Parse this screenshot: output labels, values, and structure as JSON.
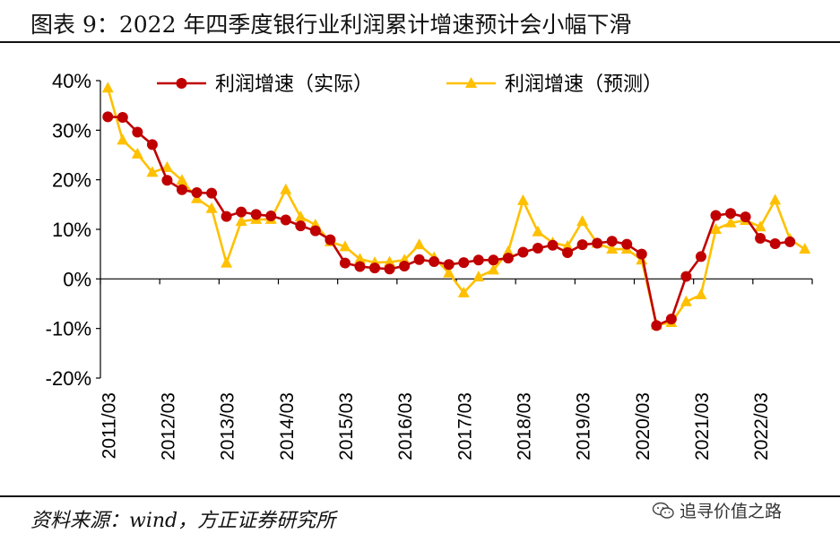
{
  "header": {
    "title": "图表 9：2022 年四季度银行业利润累计增速预计会小幅下滑"
  },
  "footer": {
    "source": "资料来源：wind，方正证券研究所",
    "watermark": "追寻价值之路",
    "watermark_icon": "wechat-icon"
  },
  "chart_data": {
    "type": "line",
    "title": "2022 年四季度银行业利润累计增速预计会小幅下滑",
    "xlabel": "",
    "ylabel": "",
    "ylim": [
      -20,
      40
    ],
    "yticks": [
      -20,
      -10,
      0,
      10,
      20,
      30,
      40
    ],
    "ytick_labels": [
      "-20%",
      "-10%",
      "0%",
      "10%",
      "20%",
      "30%",
      "40%"
    ],
    "x_tick_labels": [
      "2011/03",
      "2012/03",
      "2013/03",
      "2014/03",
      "2015/03",
      "2016/03",
      "2017/03",
      "2018/03",
      "2019/03",
      "2020/03",
      "2021/03",
      "2022/03"
    ],
    "x": [
      "2011/03",
      "2011/06",
      "2011/09",
      "2011/12",
      "2012/03",
      "2012/06",
      "2012/09",
      "2012/12",
      "2013/03",
      "2013/06",
      "2013/09",
      "2013/12",
      "2014/03",
      "2014/06",
      "2014/09",
      "2014/12",
      "2015/03",
      "2015/06",
      "2015/09",
      "2015/12",
      "2016/03",
      "2016/06",
      "2016/09",
      "2016/12",
      "2017/03",
      "2017/06",
      "2017/09",
      "2017/12",
      "2018/03",
      "2018/06",
      "2018/09",
      "2018/12",
      "2019/03",
      "2019/06",
      "2019/09",
      "2019/12",
      "2020/03",
      "2020/06",
      "2020/09",
      "2020/12",
      "2021/03",
      "2021/06",
      "2021/09",
      "2021/12",
      "2022/03",
      "2022/06",
      "2022/09",
      "2022/12"
    ],
    "grid": false,
    "legend_position": "top",
    "series": [
      {
        "name": "利润增速（实际）",
        "color": "#C00000",
        "marker": "circle",
        "values": [
          32.7,
          32.6,
          29.6,
          27.1,
          19.9,
          18.0,
          17.4,
          17.3,
          12.6,
          13.5,
          13.0,
          12.7,
          11.9,
          10.7,
          9.7,
          7.9,
          3.2,
          2.5,
          2.2,
          2.0,
          2.6,
          3.9,
          3.5,
          2.9,
          3.3,
          3.8,
          3.8,
          4.2,
          5.4,
          6.2,
          6.8,
          5.3,
          6.9,
          7.2,
          7.6,
          7.0,
          5.0,
          -9.4,
          -8.1,
          0.5,
          4.5,
          12.8,
          13.2,
          12.5,
          8.2,
          7.1,
          7.5,
          null
        ]
      },
      {
        "name": "利润增速（预测）",
        "color": "#FFC000",
        "marker": "triangle",
        "values": [
          38.5,
          28.0,
          25.2,
          21.5,
          22.5,
          19.9,
          16.2,
          14.2,
          3.2,
          11.6,
          12.0,
          12.0,
          18.0,
          12.5,
          10.9,
          7.5,
          6.5,
          4.0,
          3.3,
          3.4,
          3.8,
          6.9,
          4.3,
          1.2,
          -2.8,
          0.4,
          1.8,
          5.5,
          15.8,
          9.5,
          7.3,
          6.6,
          11.6,
          7.2,
          6.0,
          6.0,
          3.8,
          -9.3,
          -8.8,
          -4.6,
          -3.2,
          10.0,
          11.3,
          11.8,
          10.5,
          15.9,
          8.0,
          6.0
        ]
      }
    ]
  }
}
